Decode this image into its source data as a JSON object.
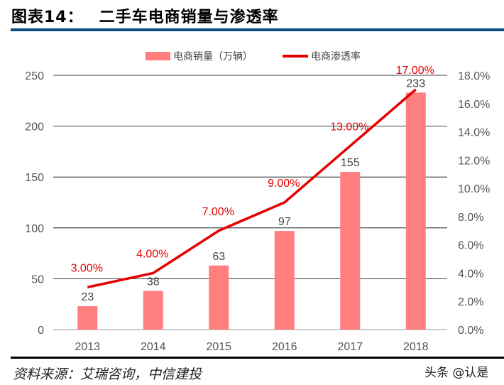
{
  "title_prefix": "图表14：",
  "title": "二手车电商销量与渗透率",
  "source": "资料来源：艾瑞咨询，中信建投",
  "watermark": "头条 @认是",
  "chart_data": {
    "type": "bar+line",
    "categories": [
      "2013",
      "2014",
      "2015",
      "2016",
      "2017",
      "2018"
    ],
    "series": [
      {
        "name": "电商销量（万辆）",
        "type": "bar",
        "axis": "left",
        "color": "#ff7f7f",
        "values": [
          23,
          38,
          63,
          97,
          155,
          233
        ],
        "labels": [
          "23",
          "38",
          "63",
          "97",
          "155",
          "233"
        ]
      },
      {
        "name": "电商渗透率",
        "type": "line",
        "axis": "right",
        "color": "#e60000",
        "values": [
          3.0,
          4.0,
          7.0,
          9.0,
          13.0,
          17.0
        ],
        "labels": [
          "3.00%",
          "4.00%",
          "7.00%",
          "9.00%",
          "13.00%",
          "17.00%"
        ]
      }
    ],
    "y_left": {
      "range": [
        0,
        250
      ],
      "ticks": [
        "0",
        "50",
        "100",
        "150",
        "200",
        "250"
      ]
    },
    "y_right": {
      "range": [
        0,
        18
      ],
      "ticks": [
        "0.0%",
        "2.0%",
        "4.0%",
        "6.0%",
        "8.0%",
        "10.0%",
        "12.0%",
        "14.0%",
        "16.0%",
        "18.0%"
      ]
    },
    "grid": true,
    "legend": "top"
  }
}
